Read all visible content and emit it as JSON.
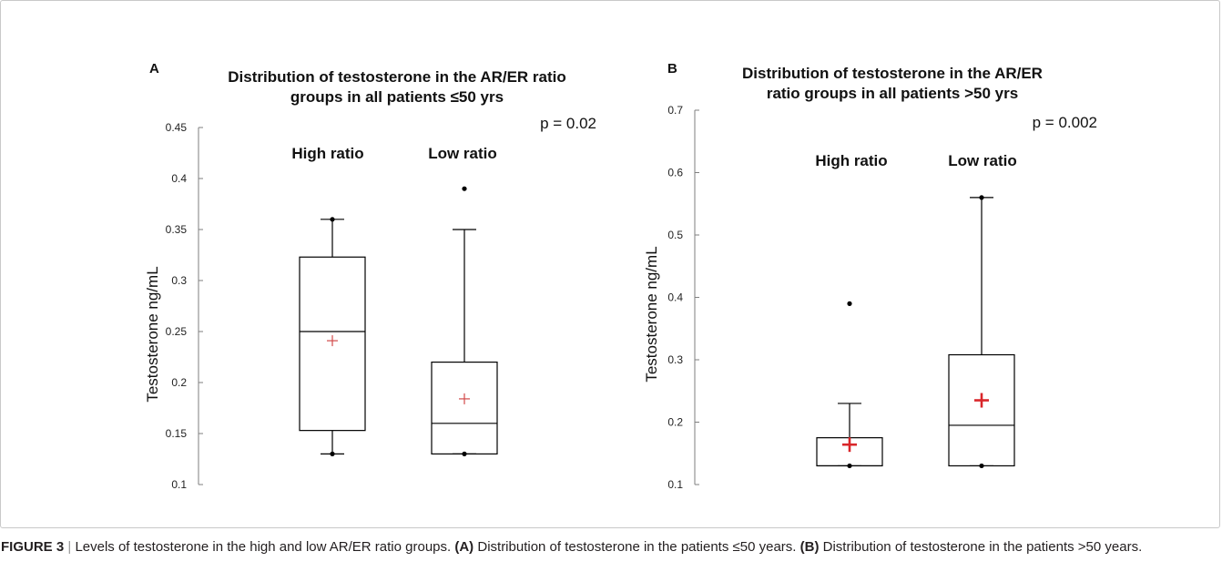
{
  "colors": {
    "box_stroke": "#000000",
    "mean_marker": "#d9262a",
    "mean_marker_light": "#d14a4a",
    "axis": "#7f7f7f",
    "frame": "#c9c9c9"
  },
  "chart_data": [
    {
      "type": "box",
      "panel_label": "A",
      "title_line1": "Distribution of testosterone in the AR/ER ratio",
      "title_line2": "groups in all patients ≤50 yrs",
      "ylabel": "Testosterone ng/mL",
      "ylim": [
        0.1,
        0.45
      ],
      "yticks": [
        0.1,
        0.15,
        0.2,
        0.25,
        0.3,
        0.35,
        0.4,
        0.45
      ],
      "yticklabels": [
        "0.1",
        "0.15",
        "0.2",
        "0.25",
        "0.3",
        "0.35",
        "0.4",
        "0.45"
      ],
      "p_value": "p = 0.02",
      "groups": [
        {
          "name": "High ratio",
          "whisker_low": 0.13,
          "q1": 0.153,
          "median": 0.25,
          "q3": 0.323,
          "whisker_high": 0.36,
          "mean": 0.241,
          "points": [
            0.13,
            0.36
          ],
          "outliers": []
        },
        {
          "name": "Low ratio",
          "whisker_low": 0.13,
          "q1": 0.13,
          "median": 0.16,
          "q3": 0.22,
          "whisker_high": 0.35,
          "mean": 0.184,
          "points": [
            0.13
          ],
          "outliers": [
            0.39
          ]
        }
      ]
    },
    {
      "type": "box",
      "panel_label": "B",
      "title_line1": "Distribution of testosterone in the AR/ER",
      "title_line2": "ratio groups in all patients >50 yrs",
      "ylabel": "Testosterone ng/mL",
      "ylim": [
        0.1,
        0.7
      ],
      "yticks": [
        0.1,
        0.2,
        0.3,
        0.4,
        0.5,
        0.6,
        0.7
      ],
      "yticklabels": [
        "0.1",
        "0.2",
        "0.3",
        "0.4",
        "0.5",
        "0.6",
        "0.7"
      ],
      "p_value": "p = 0.002",
      "groups": [
        {
          "name": "High ratio",
          "whisker_low": 0.13,
          "q1": 0.13,
          "median": 0.13,
          "q3": 0.175,
          "whisker_high": 0.23,
          "mean": 0.164,
          "points": [
            0.13
          ],
          "outliers": [
            0.39
          ]
        },
        {
          "name": "Low ratio",
          "whisker_low": 0.13,
          "q1": 0.13,
          "median": 0.195,
          "q3": 0.308,
          "whisker_high": 0.56,
          "mean": 0.235,
          "points": [
            0.13,
            0.56
          ],
          "outliers": []
        }
      ]
    }
  ],
  "caption": {
    "figure_label": "FIGURE 3",
    "separator": "|",
    "intro": "Levels of testosterone in the high and low AR/ER ratio groups.",
    "a_label": "(A)",
    "a_text": "Distribution of testosterone in the patients ≤50 years.",
    "b_label": "(B)",
    "b_text": "Distribution of testosterone in the patients >50 years."
  }
}
